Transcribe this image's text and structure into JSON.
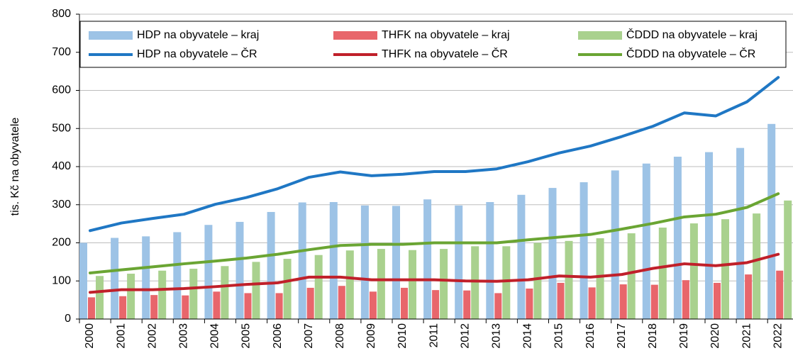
{
  "chart_data": {
    "type": "bar",
    "ylabel": "tis. Kč na obyvatele",
    "categories": [
      "2000",
      "2001",
      "2002",
      "2003",
      "2004",
      "2005",
      "2006",
      "2007",
      "2008",
      "2009",
      "2010",
      "2011",
      "2012",
      "2013",
      "2014",
      "2015",
      "2016",
      "2017",
      "2018",
      "2019",
      "2020",
      "2021",
      "2022"
    ],
    "ylim": [
      0,
      800
    ],
    "yticks": [
      0,
      100,
      200,
      300,
      400,
      500,
      600,
      700,
      800
    ],
    "grid": true,
    "series": [
      {
        "name": "HDP  na obyvatele – kraj",
        "type": "bar",
        "color": "#9dc3e6",
        "values": [
          200,
          213,
          217,
          228,
          247,
          255,
          281,
          306,
          307,
          298,
          297,
          314,
          298,
          307,
          326,
          344,
          359,
          390,
          408,
          426,
          438,
          449,
          512
        ]
      },
      {
        "name": "THFK  na obyvatele – kraj",
        "type": "bar",
        "color": "#e8666b",
        "values": [
          57,
          60,
          63,
          62,
          72,
          68,
          68,
          82,
          87,
          72,
          82,
          76,
          75,
          68,
          80,
          95,
          83,
          91,
          90,
          102,
          95,
          117,
          127
        ]
      },
      {
        "name": "ČDDD  na obyvatele – kraj",
        "type": "bar",
        "color": "#a9d18e",
        "values": [
          113,
          119,
          127,
          132,
          139,
          150,
          158,
          168,
          180,
          184,
          181,
          184,
          191,
          191,
          200,
          205,
          212,
          225,
          240,
          251,
          262,
          277,
          311
        ]
      },
      {
        "name": "HDP  na obyvatele – ČR",
        "type": "line",
        "color": "#1f77c4",
        "values": [
          232,
          252,
          264,
          275,
          301,
          319,
          342,
          372,
          386,
          376,
          380,
          387,
          387,
          394,
          413,
          436,
          454,
          479,
          506,
          541,
          533,
          570,
          634
        ]
      },
      {
        "name": "THFK  na obyvatele – ČR",
        "type": "line",
        "color": "#c0202a",
        "values": [
          70,
          77,
          77,
          80,
          85,
          91,
          95,
          110,
          110,
          103,
          103,
          103,
          100,
          99,
          103,
          113,
          110,
          117,
          133,
          145,
          140,
          148,
          170
        ]
      },
      {
        "name": "ČDDD  na obyvatele – ČR",
        "type": "line",
        "color": "#6aa533",
        "values": [
          121,
          129,
          137,
          145,
          152,
          160,
          170,
          182,
          193,
          196,
          196,
          200,
          200,
          200,
          208,
          215,
          222,
          236,
          251,
          268,
          275,
          293,
          329
        ]
      }
    ]
  }
}
